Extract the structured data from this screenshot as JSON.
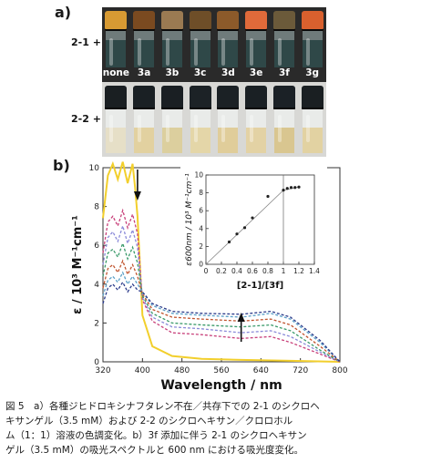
{
  "figure": {
    "panel_a_letter": "a)",
    "panel_b_letter": "b)",
    "row1_label": "2-1 +",
    "row2_label": "2-2 +",
    "vial_labels": [
      "none",
      "3a",
      "3b",
      "3c",
      "3d",
      "3e",
      "3f",
      "3g"
    ],
    "row1_colors": {
      "caps": [
        "#d79a33",
        "#7a4a20",
        "#9a7a52",
        "#6e4e28",
        "#8c5a2a",
        "#e06a3a",
        "#6b5a3a",
        "#d8602e"
      ],
      "liquid": "#2f4848"
    },
    "row2_colors": {
      "caps": [
        "#1a1f22",
        "#1a2024",
        "#1a1f23",
        "#1c2226",
        "#1b2125",
        "#1a2024",
        "#1b2126",
        "#1a1f22"
      ],
      "liquid": [
        "#e6dfc7",
        "#e2d1a0",
        "#dccf9e",
        "#e4d6a8",
        "#e0cd9a",
        "#e3d2a4",
        "#d9c690",
        "#e2d2a2"
      ]
    }
  },
  "chart_data": [
    {
      "type": "line",
      "xlabel": "Wavelength / nm",
      "ylabel": "ε / 10³ M⁻¹cm⁻¹",
      "xlim": [
        320,
        800
      ],
      "ylim": [
        0,
        10
      ],
      "xticks": [
        320,
        400,
        480,
        560,
        640,
        720,
        800
      ],
      "yticks": [
        0,
        2,
        4,
        6,
        8,
        10
      ],
      "arrow_down_x": 390,
      "arrow_up_x": 600,
      "series": [
        {
          "color": "#f2cf2c",
          "x": [
            320,
            330,
            340,
            350,
            360,
            370,
            380,
            385,
            390,
            400,
            420,
            460,
            520,
            600,
            700,
            800
          ],
          "y": [
            7.4,
            9.6,
            10.2,
            9.4,
            10.3,
            9.2,
            10.2,
            9.0,
            7.5,
            2.4,
            0.8,
            0.3,
            0.15,
            0.1,
            0.05,
            0.0
          ]
        },
        {
          "color": "#c8407a",
          "x": [
            320,
            330,
            340,
            350,
            360,
            370,
            380,
            390,
            400,
            420,
            460,
            520,
            600,
            660,
            700,
            760,
            800
          ],
          "y": [
            5.6,
            7.2,
            7.5,
            7.0,
            7.8,
            6.9,
            7.6,
            6.6,
            3.2,
            2.1,
            1.5,
            1.4,
            1.2,
            1.3,
            1.0,
            0.4,
            0.0
          ]
        },
        {
          "color": "#8a8ad8",
          "x": [
            320,
            330,
            340,
            350,
            360,
            370,
            380,
            390,
            400,
            420,
            460,
            520,
            600,
            660,
            700,
            760,
            800
          ],
          "y": [
            5.0,
            6.4,
            6.7,
            6.2,
            7.0,
            6.1,
            6.8,
            5.9,
            3.3,
            2.3,
            1.8,
            1.7,
            1.5,
            1.6,
            1.3,
            0.5,
            0.0
          ]
        },
        {
          "color": "#3a9a6a",
          "x": [
            320,
            330,
            340,
            350,
            360,
            370,
            380,
            390,
            400,
            420,
            460,
            520,
            600,
            660,
            700,
            760,
            800
          ],
          "y": [
            4.4,
            5.6,
            5.8,
            5.4,
            6.1,
            5.3,
            5.9,
            5.1,
            3.4,
            2.5,
            2.0,
            1.9,
            1.8,
            1.9,
            1.6,
            0.6,
            0.0
          ]
        },
        {
          "color": "#c0542e",
          "x": [
            320,
            330,
            340,
            350,
            360,
            370,
            380,
            390,
            400,
            420,
            460,
            520,
            600,
            660,
            700,
            760,
            800
          ],
          "y": [
            3.8,
            4.8,
            5.0,
            4.6,
            5.2,
            4.5,
            5.0,
            4.4,
            3.5,
            2.7,
            2.3,
            2.2,
            2.1,
            2.2,
            1.9,
            0.8,
            0.0
          ]
        },
        {
          "color": "#5aa0c8",
          "x": [
            320,
            330,
            340,
            350,
            360,
            370,
            380,
            390,
            400,
            420,
            460,
            520,
            600,
            660,
            700,
            760,
            800
          ],
          "y": [
            3.4,
            4.2,
            4.4,
            4.1,
            4.6,
            4.0,
            4.4,
            4.0,
            3.6,
            2.9,
            2.5,
            2.4,
            2.3,
            2.5,
            2.2,
            1.0,
            0.0
          ]
        },
        {
          "color": "#2a3a8a",
          "x": [
            320,
            330,
            340,
            350,
            360,
            370,
            380,
            390,
            400,
            420,
            460,
            520,
            600,
            660,
            700,
            760,
            800
          ],
          "y": [
            3.0,
            3.8,
            4.0,
            3.7,
            4.1,
            3.6,
            4.0,
            3.7,
            3.6,
            3.0,
            2.6,
            2.5,
            2.45,
            2.6,
            2.3,
            1.1,
            0.0
          ]
        }
      ]
    },
    {
      "type": "scatter",
      "xlabel": "[2-1]/[3f]",
      "ylabel": "ε600nm / 10³ M⁻¹cm⁻¹",
      "xlim": [
        0,
        1.4
      ],
      "ylim": [
        0,
        10
      ],
      "xticks": [
        "0",
        "0.2",
        "0.4",
        "0.6",
        "0.8",
        "1",
        "1.2",
        "1.4"
      ],
      "yticks": [
        "0",
        "2",
        "4",
        "6",
        "8",
        "10"
      ],
      "x": [
        0.3,
        0.4,
        0.5,
        0.6,
        0.8,
        1.0,
        1.05,
        1.1,
        1.15,
        1.2
      ],
      "y": [
        2.5,
        3.4,
        4.1,
        5.2,
        7.6,
        8.3,
        8.5,
        8.6,
        8.6,
        8.65
      ],
      "fit": {
        "x": [
          0,
          1.0,
          1.2
        ],
        "y": [
          0,
          8.3,
          8.65
        ]
      },
      "breakpoint_x": 1.0
    }
  ],
  "caption": {
    "lines": [
      "図 5　a）各種ジヒドロキシナフタレン不在／共存下での 2-1 のシクロヘ",
      "キサンゲル（3.5 mM）および 2-2 のシクロヘキサン／クロロホル",
      "ム（1：1）溶液の色調変化。b）3f 添加に伴う 2-1 のシクロヘキサン",
      "ゲル（3.5 mM）の吸光スペクトルと 600 nm における吸光度変化。"
    ]
  }
}
